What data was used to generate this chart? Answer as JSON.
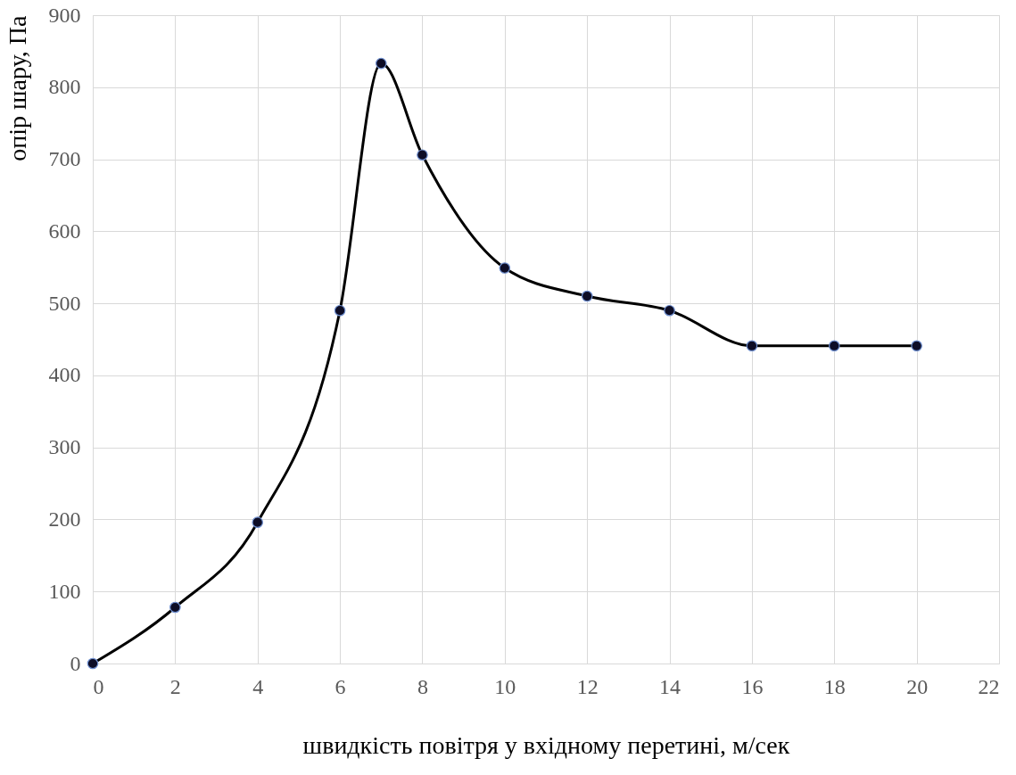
{
  "chart_data": {
    "type": "line",
    "xlabel": "швидкість повітря у вхідному перетині, м/сек",
    "ylabel": "опір шару, Па",
    "x": [
      0,
      2,
      4,
      6,
      7,
      8,
      10,
      12,
      14,
      16,
      18,
      20
    ],
    "series": [
      {
        "color": "#000000",
        "values": [
          0,
          78,
          196,
          490,
          833,
          706,
          549,
          510,
          490,
          441,
          441,
          441
        ]
      }
    ],
    "xlim": [
      0,
      22
    ],
    "xticks": [
      0,
      2,
      4,
      6,
      8,
      10,
      12,
      14,
      16,
      18,
      20,
      22
    ],
    "ylim": [
      0,
      900
    ],
    "yticks": [
      0,
      100,
      200,
      300,
      400,
      500,
      600,
      700,
      800,
      900
    ],
    "grid": true,
    "marker": "circle",
    "line_style": "solid"
  }
}
